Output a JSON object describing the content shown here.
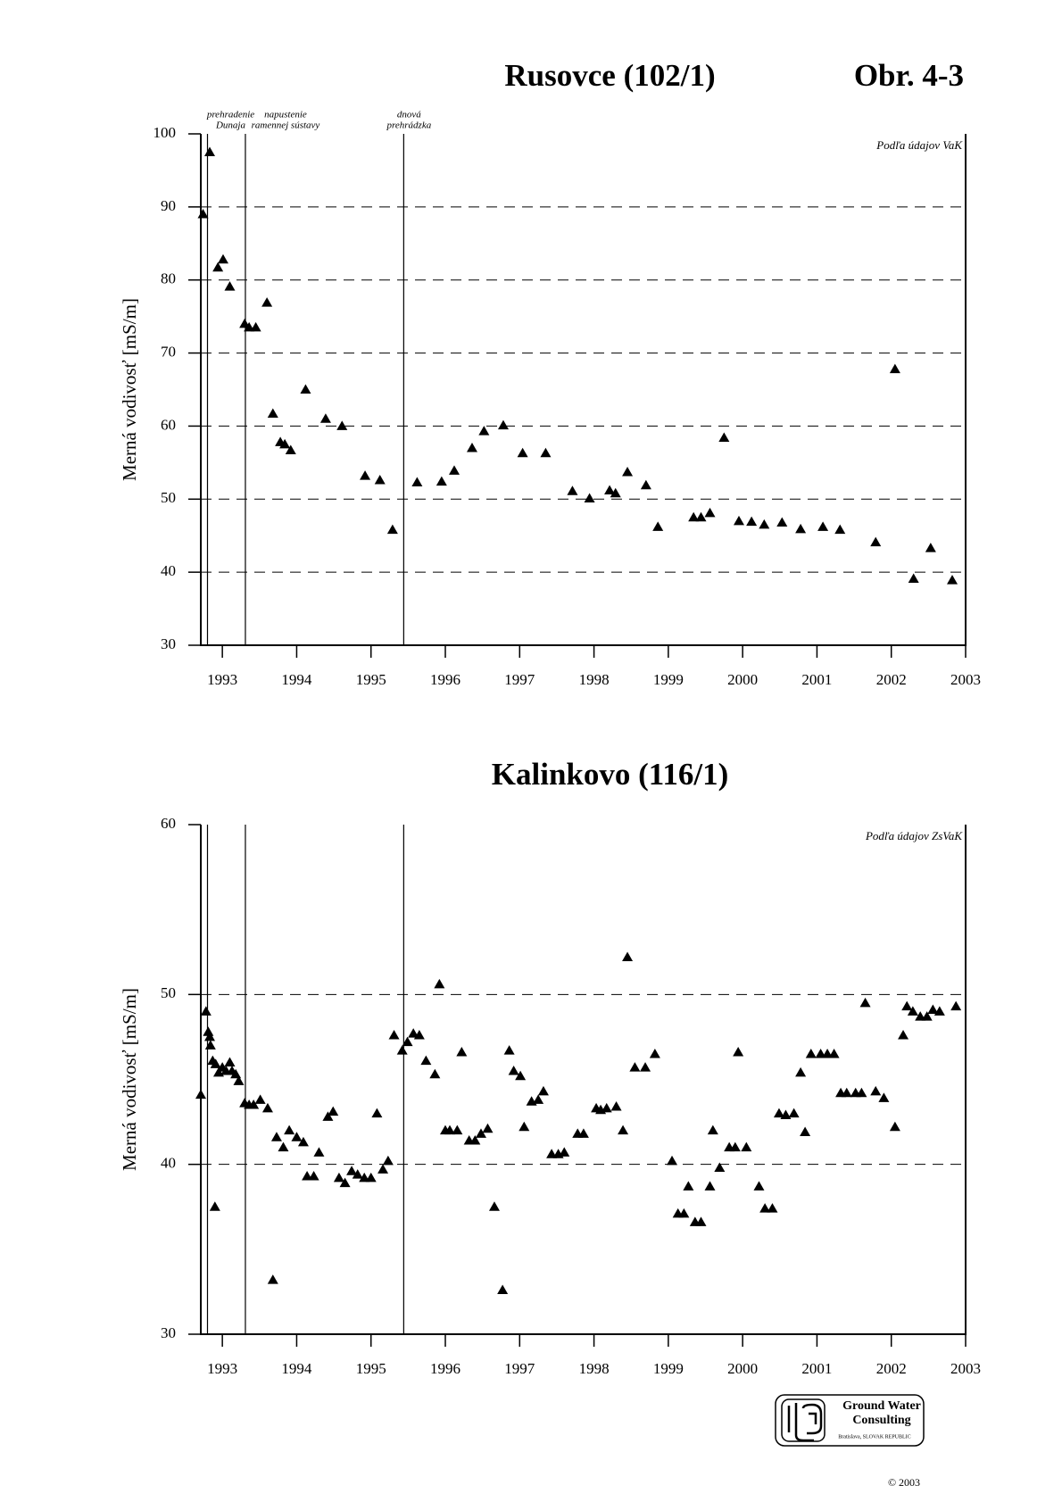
{
  "figure_label": "Obr. 4-3",
  "chart_data": [
    {
      "type": "scatter",
      "title": "Rusovce (102/1)",
      "y_label": "Merná vodivosť [mS/m]",
      "source": "Podľa údajov VaK",
      "color": "#000000",
      "marker": "triangle",
      "grid": true,
      "xlim": [
        1992.71,
        2003
      ],
      "xticks": [
        1993,
        1994,
        1995,
        1996,
        1997,
        1998,
        1999,
        2000,
        2001,
        2002,
        2003
      ],
      "ylim": [
        30,
        100
      ],
      "yticks": [
        30,
        40,
        50,
        60,
        70,
        80,
        90,
        100
      ],
      "events": [
        {
          "x": 1992.8,
          "label": [
            "prehradenie",
            "Dunaja"
          ]
        },
        {
          "x": 1993.31,
          "label": [
            "napustenie",
            "ramennej sústavy"
          ]
        },
        {
          "x": 1995.44,
          "label": [
            "dnová",
            "prehrádzka"
          ]
        }
      ],
      "x": [
        1992.74,
        1992.83,
        1992.94,
        1993.01,
        1993.1,
        1993.3,
        1993.36,
        1993.45,
        1993.6,
        1993.68,
        1993.78,
        1993.84,
        1993.92,
        1994.12,
        1994.39,
        1994.61,
        1994.92,
        1995.12,
        1995.29,
        1995.62,
        1995.95,
        1996.12,
        1996.36,
        1996.52,
        1996.78,
        1997.04,
        1997.35,
        1997.71,
        1997.94,
        1998.21,
        1998.29,
        1998.45,
        1998.7,
        1998.86,
        1999.34,
        1999.44,
        1999.56,
        1999.75,
        1999.95,
        2000.12,
        2000.29,
        2000.53,
        2000.78,
        2001.08,
        2001.31,
        2001.79,
        2002.05,
        2002.3,
        2002.53,
        2002.82
      ],
      "values": [
        89,
        97.5,
        81.7,
        82.8,
        79.1,
        74,
        73.5,
        73.5,
        76.9,
        61.7,
        57.8,
        57.5,
        56.7,
        65,
        61,
        60,
        53.2,
        52.6,
        45.8,
        52.3,
        52.4,
        53.9,
        57,
        59.3,
        60.1,
        56.3,
        56.3,
        51.1,
        50.1,
        51.2,
        50.8,
        53.7,
        51.9,
        46.2,
        47.5,
        47.5,
        48.1,
        58.4,
        47,
        46.9,
        46.5,
        46.8,
        45.9,
        46.2,
        45.8,
        44.1,
        67.8,
        39.1,
        43.3,
        38.9
      ]
    },
    {
      "type": "scatter",
      "title": "Kalinkovo (116/1)",
      "y_label": "Merná vodivosť [mS/m]",
      "source": "Podľa údajov ZsVaK",
      "color": "#000000",
      "marker": "triangle",
      "grid": true,
      "xlim": [
        1992.71,
        2003
      ],
      "xticks": [
        1993,
        1994,
        1995,
        1996,
        1997,
        1998,
        1999,
        2000,
        2001,
        2002,
        2003
      ],
      "ylim": [
        30,
        60
      ],
      "yticks": [
        30,
        40,
        50,
        60
      ],
      "vlines": [
        1992.8,
        1993.31,
        1995.44
      ],
      "x": [
        1992.71,
        1992.78,
        1992.81,
        1992.83,
        1992.84,
        1992.87,
        1992.9,
        1992.91,
        1992.95,
        1993.0,
        1993.05,
        1993.1,
        1993.13,
        1993.18,
        1993.22,
        1993.3,
        1993.36,
        1993.42,
        1993.51,
        1993.61,
        1993.68,
        1993.73,
        1993.82,
        1993.9,
        1994.0,
        1994.09,
        1994.14,
        1994.23,
        1994.3,
        1994.42,
        1994.49,
        1994.57,
        1994.65,
        1994.74,
        1994.82,
        1994.91,
        1995.0,
        1995.08,
        1995.16,
        1995.23,
        1995.31,
        1995.42,
        1995.49,
        1995.57,
        1995.65,
        1995.74,
        1995.86,
        1995.92,
        1996.0,
        1996.06,
        1996.16,
        1996.22,
        1996.32,
        1996.4,
        1996.48,
        1996.57,
        1996.66,
        1996.77,
        1996.86,
        1996.92,
        1997.01,
        1997.06,
        1997.16,
        1997.25,
        1997.32,
        1997.43,
        1997.52,
        1997.6,
        1997.78,
        1997.86,
        1998.03,
        1998.09,
        1998.17,
        1998.3,
        1998.39,
        1998.45,
        1998.55,
        1998.69,
        1998.82,
        1999.05,
        1999.13,
        1999.21,
        1999.27,
        1999.36,
        1999.44,
        1999.56,
        1999.6,
        1999.69,
        1999.82,
        1999.9,
        1999.94,
        2000.05,
        2000.22,
        2000.3,
        2000.4,
        2000.49,
        2000.58,
        2000.69,
        2000.78,
        2000.84,
        2000.92,
        2001.05,
        2001.14,
        2001.23,
        2001.32,
        2001.4,
        2001.52,
        2001.6,
        2001.65,
        2001.79,
        2001.9,
        2002.05,
        2002.16,
        2002.21,
        2002.29,
        2002.39,
        2002.48,
        2002.56,
        2002.65,
        2002.87
      ],
      "values": [
        44.1,
        49,
        47.8,
        47.5,
        47,
        46.1,
        37.5,
        45.9,
        45.4,
        45.7,
        45.5,
        46,
        45.5,
        45.3,
        44.9,
        43.6,
        43.5,
        43.5,
        43.8,
        43.3,
        33.2,
        41.6,
        41,
        42,
        41.6,
        41.3,
        39.3,
        39.3,
        40.7,
        42.8,
        43.1,
        39.2,
        38.9,
        39.6,
        39.4,
        39.2,
        39.2,
        43,
        39.7,
        40.2,
        47.6,
        46.7,
        47.2,
        47.7,
        47.6,
        46.1,
        45.3,
        50.6,
        42,
        42,
        42,
        46.6,
        41.4,
        41.4,
        41.8,
        42.1,
        37.5,
        32.6,
        46.7,
        45.5,
        45.2,
        42.2,
        43.7,
        43.8,
        44.3,
        40.6,
        40.6,
        40.7,
        41.8,
        41.8,
        43.3,
        43.2,
        43.3,
        43.4,
        42,
        52.2,
        45.7,
        45.7,
        46.5,
        40.2,
        37.1,
        37.1,
        38.7,
        36.6,
        36.6,
        38.7,
        42,
        39.8,
        41,
        41,
        46.6,
        41,
        38.7,
        37.4,
        37.4,
        43,
        42.9,
        43,
        45.4,
        41.9,
        46.5,
        46.5,
        46.5,
        46.5,
        44.2,
        44.2,
        44.2,
        44.2,
        49.5,
        44.3,
        43.9,
        42.2,
        47.6,
        49.3,
        49,
        48.7,
        48.7,
        49.1,
        49,
        49.3
      ]
    }
  ],
  "logo": {
    "lines": [
      "Ground Water",
      "Consulting"
    ],
    "place": "Bratislava, SLOVAK REPUBLIC",
    "copyright": "© 2003"
  }
}
